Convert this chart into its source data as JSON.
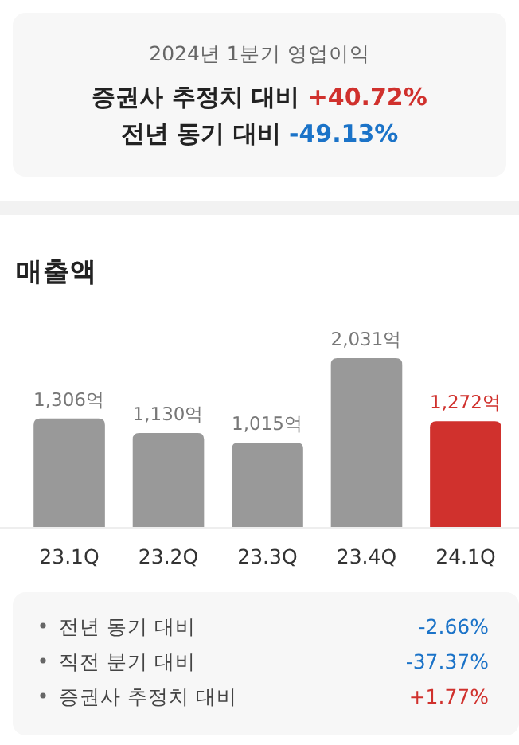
{
  "chart_data": [
    {
      "type": "other",
      "title": "2024년 1분기 영업이익",
      "categories": [
        "증권사 추정치 대비",
        "전년 동기 대비"
      ],
      "values": [
        40.72,
        -49.13
      ],
      "value_labels": [
        "+40.72%",
        "-49.13%"
      ]
    },
    {
      "type": "bar",
      "title": "매출액",
      "categories": [
        "23.1Q",
        "23.2Q",
        "23.3Q",
        "23.4Q",
        "24.1Q"
      ],
      "values": [
        1306,
        1130,
        1015,
        2031,
        1272
      ],
      "value_labels": [
        "1,306억",
        "1,130억",
        "1,015억",
        "2,031억",
        "1,272억"
      ],
      "colors": [
        "#999999",
        "#999999",
        "#999999",
        "#999999",
        "#d0312d"
      ]
    },
    {
      "type": "other",
      "categories": [
        "전년 동기 대비",
        "직전 분기 대비",
        "증권사 추정치 대비"
      ],
      "values": [
        -2.66,
        -37.37,
        1.77
      ],
      "value_labels": [
        "-2.66%",
        "-37.37%",
        "+1.77%"
      ]
    }
  ]
}
